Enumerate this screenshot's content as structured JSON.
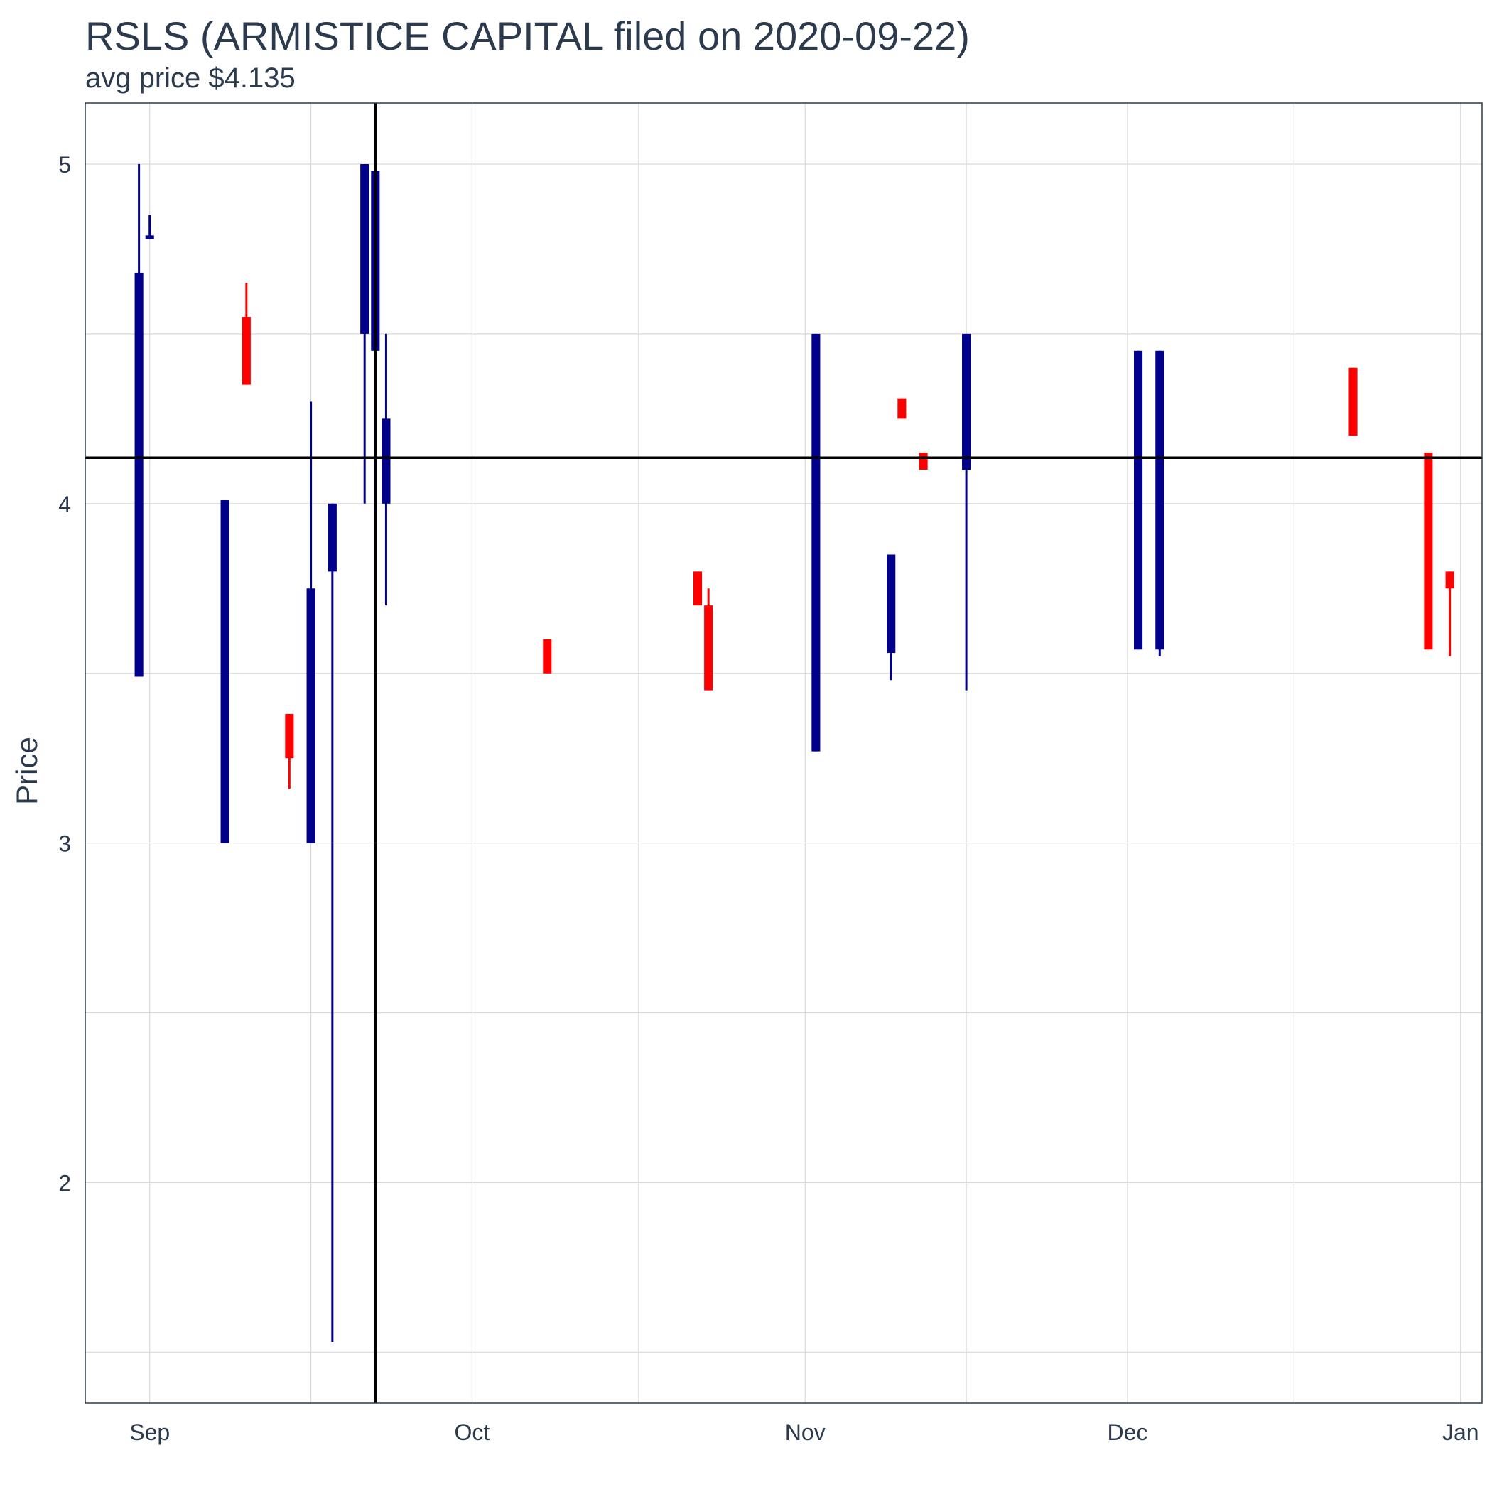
{
  "chart_data": {
    "type": "candlestick",
    "title": "RSLS (ARMISTICE CAPITAL filed on 2020-09-22)",
    "subtitle": "avg price $4.135",
    "xlabel": "",
    "ylabel": "Price",
    "ylim": [
      1.35,
      5.18
    ],
    "xlim": [
      "2020-08-26",
      "2021-01-03"
    ],
    "y_ticks": [
      2,
      3,
      4,
      5
    ],
    "x_ticks": [
      {
        "date": "2020-09-01",
        "label": "Sep"
      },
      {
        "date": "2020-10-01",
        "label": "Oct"
      },
      {
        "date": "2020-11-01",
        "label": "Nov"
      },
      {
        "date": "2020-12-01",
        "label": "Dec"
      },
      {
        "date": "2021-01-01",
        "label": "Jan"
      }
    ],
    "reference_hline": 4.135,
    "reference_vline": "2020-09-22",
    "grid": true,
    "colors": {
      "up": "#00008b",
      "down": "#ff0000",
      "reference": "#000000",
      "grid": "#d9d9d9",
      "text": "#2b3a4c"
    },
    "candles": [
      {
        "date": "2020-08-31",
        "open": 3.49,
        "high": 5.0,
        "low": 3.49,
        "close": 4.68
      },
      {
        "date": "2020-09-01",
        "open": 4.78,
        "high": 4.85,
        "low": 4.78,
        "close": 4.79
      },
      {
        "date": "2020-09-08",
        "open": 3.0,
        "high": 4.01,
        "low": 3.0,
        "close": 4.01
      },
      {
        "date": "2020-09-10",
        "open": 4.55,
        "high": 4.65,
        "low": 4.35,
        "close": 4.35
      },
      {
        "date": "2020-09-14",
        "open": 3.38,
        "high": 3.38,
        "low": 3.16,
        "close": 3.25
      },
      {
        "date": "2020-09-16",
        "open": 3.0,
        "high": 4.3,
        "low": 3.0,
        "close": 3.75
      },
      {
        "date": "2020-09-18",
        "open": 3.8,
        "high": 4.0,
        "low": 1.53,
        "close": 4.0
      },
      {
        "date": "2020-09-21",
        "open": 4.5,
        "high": 5.0,
        "low": 4.0,
        "close": 5.0
      },
      {
        "date": "2020-09-22",
        "open": 4.45,
        "high": 4.98,
        "low": 4.45,
        "close": 4.98
      },
      {
        "date": "2020-09-23",
        "open": 4.0,
        "high": 4.5,
        "low": 3.7,
        "close": 4.25
      },
      {
        "date": "2020-10-08",
        "open": 3.6,
        "high": 3.6,
        "low": 3.5,
        "close": 3.5
      },
      {
        "date": "2020-10-22",
        "open": 3.8,
        "high": 3.8,
        "low": 3.7,
        "close": 3.7
      },
      {
        "date": "2020-10-23",
        "open": 3.7,
        "high": 3.75,
        "low": 3.45,
        "close": 3.45
      },
      {
        "date": "2020-11-02",
        "open": 3.27,
        "high": 4.5,
        "low": 3.27,
        "close": 4.5
      },
      {
        "date": "2020-11-09",
        "open": 3.56,
        "high": 3.85,
        "low": 3.48,
        "close": 3.85
      },
      {
        "date": "2020-11-10",
        "open": 4.31,
        "high": 4.31,
        "low": 4.25,
        "close": 4.25
      },
      {
        "date": "2020-11-12",
        "open": 4.15,
        "high": 4.15,
        "low": 4.1,
        "close": 4.1
      },
      {
        "date": "2020-11-16",
        "open": 4.1,
        "high": 4.5,
        "low": 3.45,
        "close": 4.5
      },
      {
        "date": "2020-12-02",
        "open": 3.57,
        "high": 4.45,
        "low": 3.57,
        "close": 4.45
      },
      {
        "date": "2020-12-04",
        "open": 3.57,
        "high": 4.45,
        "low": 3.55,
        "close": 4.45
      },
      {
        "date": "2020-12-22",
        "open": 4.4,
        "high": 4.4,
        "low": 4.2,
        "close": 4.2
      },
      {
        "date": "2020-12-29",
        "open": 4.15,
        "high": 4.15,
        "low": 3.57,
        "close": 3.57
      },
      {
        "date": "2020-12-31",
        "open": 3.8,
        "high": 3.8,
        "low": 3.55,
        "close": 3.75
      }
    ]
  }
}
